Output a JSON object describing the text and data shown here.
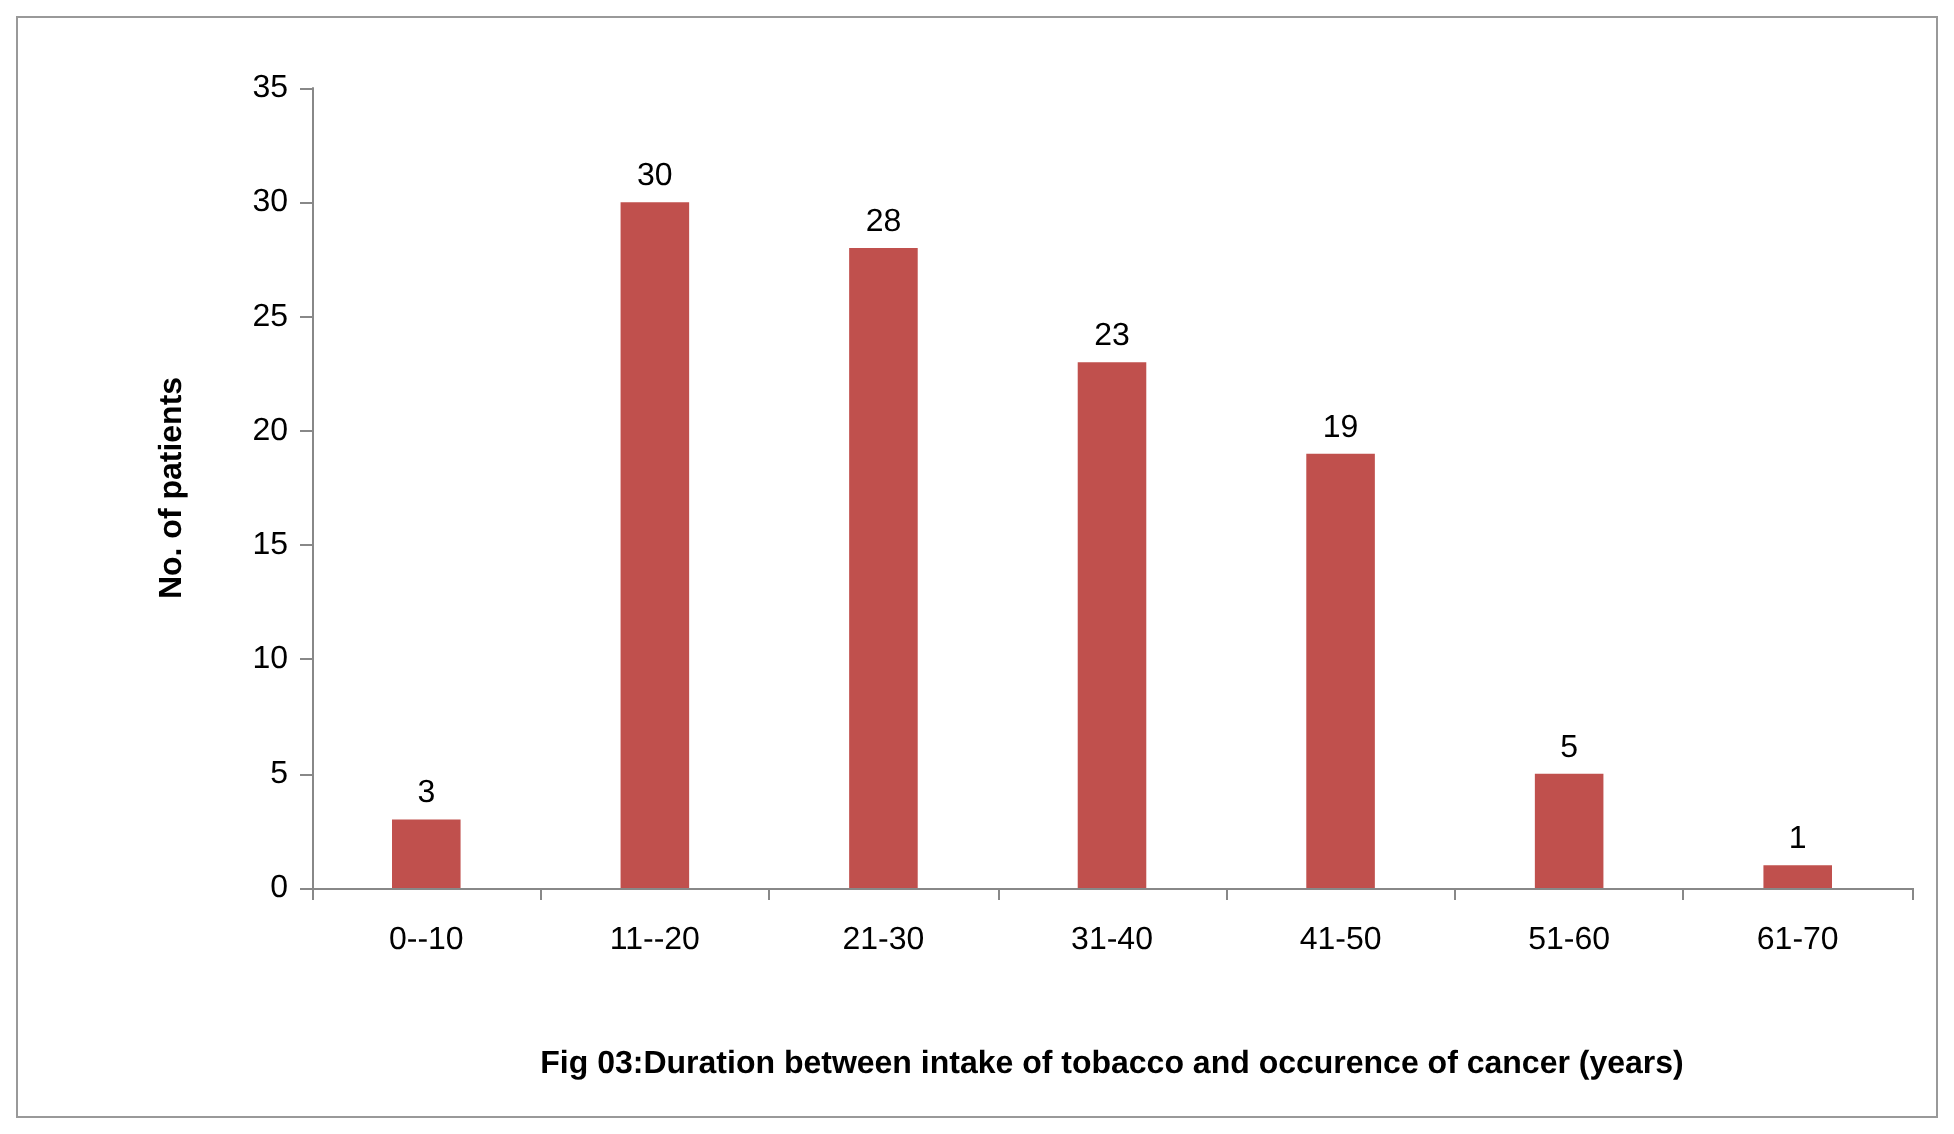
{
  "chart_data": {
    "type": "bar",
    "xlabel": "Fig 03:Duration between intake of tobacco and occurence of cancer (years)",
    "ylabel": "No. of patients",
    "categories": [
      "0--10",
      "11--20",
      "21-30",
      "31-40",
      "41-50",
      "51-60",
      "61-70"
    ],
    "values": [
      3,
      30,
      28,
      23,
      19,
      5,
      1
    ],
    "color": "#c0504d",
    "ylim": [
      0,
      35
    ],
    "yticks": [
      0,
      5,
      10,
      15,
      20,
      25,
      30,
      35
    ],
    "grid": false,
    "data_labels": true
  }
}
